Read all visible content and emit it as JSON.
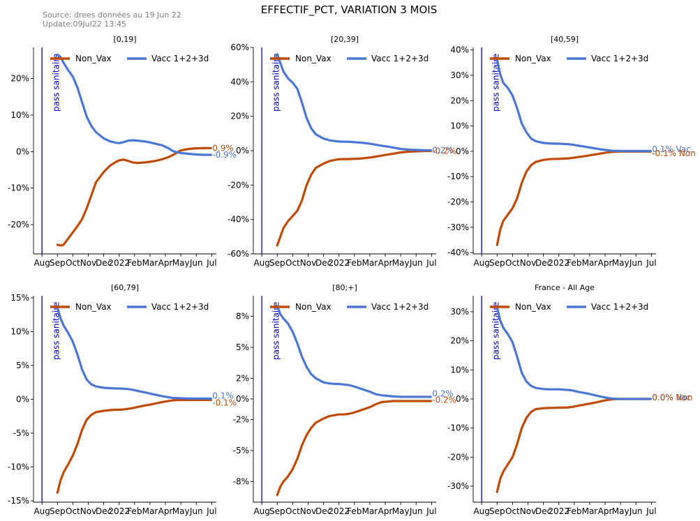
{
  "title": "EFFECTIF_PCT, VARIATION 3 MOIS",
  "source": [
    "Source: drees données au 19 Jun 22",
    "Update:09Jul22 13:45"
  ],
  "colors": {
    "non_vax": "#c04a06",
    "vax": "#4a76d6",
    "pass_line": "#2020c8",
    "pass_text": "#0000cc"
  },
  "x_ticks": [
    "Aug",
    "Sep",
    "Oct",
    "Nov",
    "Dec",
    "2022",
    "Feb",
    "Mar",
    "Apr",
    "May",
    "Jun",
    "Jul"
  ],
  "legend": [
    "Non_Vax",
    "Vacc 1+2+3d"
  ],
  "annotation": "pass sanitaire",
  "chart_data": [
    {
      "type": "line",
      "title": "[0,19]",
      "ylim": [
        -28,
        28.5
      ],
      "yticks": [
        -20,
        -10,
        0,
        10,
        20
      ],
      "ytick_labels": [
        "-20%",
        "-10%",
        "0%",
        "10%",
        "20%"
      ],
      "end_labels": [
        {
          "text": "0.9%",
          "series": "Non_Vax",
          "y": 0.9
        },
        {
          "text": "-0.9%",
          "series": "Vacc 1+2+3d",
          "y": -0.9
        }
      ],
      "x": [
        1,
        1.2,
        1.4,
        1.7,
        2,
        2.3,
        2.6,
        2.9,
        3.2,
        3.5,
        4,
        4.4,
        4.8,
        5,
        5.3,
        5.6,
        5.9,
        6.2,
        6.6,
        7,
        7.4,
        7.8,
        8.2,
        8.5,
        9,
        9.5,
        10,
        10.5,
        10.95
      ],
      "series": [
        {
          "name": "Non_Vax",
          "values": [
            -25.5,
            -25.7,
            -25.5,
            -23.8,
            -22.1,
            -20.4,
            -18.5,
            -15.5,
            -12,
            -8.4,
            -5.6,
            -3.9,
            -2.8,
            -2.4,
            -2.2,
            -2.6,
            -3,
            -3.1,
            -3.0,
            -2.8,
            -2.5,
            -2.1,
            -1.5,
            -0.9,
            0.3,
            0.7,
            0.9,
            0.95,
            0.95
          ]
        },
        {
          "name": "Vacc 1+2+3d",
          "values": [
            26.5,
            25.9,
            24.3,
            22.3,
            20.5,
            17.5,
            13.5,
            9.5,
            7.0,
            5.3,
            3.6,
            2.8,
            2.4,
            2.3,
            2.6,
            3.0,
            3.1,
            3.0,
            2.8,
            2.5,
            2.1,
            1.7,
            0.9,
            0.1,
            -0.4,
            -0.6,
            -0.8,
            -0.9,
            -0.9
          ]
        }
      ]
    },
    {
      "type": "line",
      "title": "[20,39]",
      "ylim": [
        -60,
        60
      ],
      "yticks": [
        -60,
        -40,
        -20,
        0,
        20,
        40,
        60
      ],
      "ytick_labels": [
        "-60%",
        "-40%",
        "-20%",
        "0%",
        "20%",
        "40%",
        "60%"
      ],
      "end_labels": [
        {
          "text": "0.2%",
          "series": "Vacc 1+2+3d",
          "y": 0.2
        },
        {
          "text": "-0.2%",
          "series": "Non_Vax",
          "y": -0.2
        }
      ],
      "x": [
        1,
        1.2,
        1.4,
        1.7,
        2,
        2.3,
        2.6,
        2.9,
        3.2,
        3.5,
        4,
        4.4,
        4.8,
        5,
        5.3,
        5.6,
        5.9,
        6.2,
        6.6,
        7,
        7.4,
        7.8,
        8.2,
        8.5,
        9,
        9.5,
        10,
        10.5,
        10.95
      ],
      "series": [
        {
          "name": "Non_Vax",
          "values": [
            -55,
            -50,
            -45,
            -41,
            -38,
            -35,
            -29,
            -20,
            -14,
            -10,
            -7.5,
            -6,
            -5.3,
            -5,
            -4.9,
            -4.9,
            -4.8,
            -4.7,
            -4.4,
            -4,
            -3.4,
            -2.8,
            -2.2,
            -1.8,
            -1.0,
            -0.6,
            -0.4,
            -0.2,
            -0.2
          ]
        },
        {
          "name": "Vacc 1+2+3d",
          "values": [
            56,
            51,
            46,
            42,
            39.5,
            36,
            28,
            19,
            13,
            9.5,
            7,
            6,
            5.5,
            5.3,
            5.2,
            5.2,
            5.0,
            4.8,
            4.5,
            4.0,
            3.4,
            2.8,
            2.3,
            1.8,
            1.0,
            0.6,
            0.4,
            0.3,
            0.2
          ]
        }
      ]
    },
    {
      "type": "line",
      "title": "[40,59]",
      "ylim": [
        -40.5,
        41
      ],
      "yticks": [
        -40,
        -30,
        -20,
        -10,
        0,
        10,
        20,
        30,
        40
      ],
      "ytick_labels": [
        "-40%",
        "-30%",
        "-20%",
        "-10%",
        "0%",
        "10%",
        "20%",
        "30%",
        "40%"
      ],
      "end_labels": [
        {
          "text": "0.1% Vac",
          "series": "Vacc 1+2+3d",
          "y": 0.8
        },
        {
          "text": "-0.1% Non",
          "series": "Non_Vax",
          "y": -0.8
        }
      ],
      "x": [
        1,
        1.2,
        1.4,
        1.7,
        2,
        2.3,
        2.6,
        2.9,
        3.2,
        3.5,
        4,
        4.4,
        4.8,
        5,
        5.3,
        5.6,
        5.9,
        6.2,
        6.6,
        7,
        7.4,
        7.8,
        8.2,
        8.5,
        9,
        9.5,
        10,
        10.5,
        10.95
      ],
      "series": [
        {
          "name": "Non_Vax",
          "values": [
            -37,
            -31,
            -27.5,
            -25,
            -22.5,
            -18.5,
            -12.5,
            -8,
            -5.5,
            -4.2,
            -3.4,
            -3.1,
            -3.0,
            -3.0,
            -2.9,
            -2.8,
            -2.6,
            -2.3,
            -2.0,
            -1.6,
            -1.2,
            -0.8,
            -0.4,
            -0.2,
            -0.1,
            -0.1,
            -0.1,
            -0.1,
            -0.1
          ]
        },
        {
          "name": "Vacc 1+2+3d",
          "values": [
            36,
            30.5,
            27,
            25,
            22,
            17,
            11,
            7.5,
            5,
            4,
            3.3,
            3.1,
            3.0,
            3.0,
            2.9,
            2.8,
            2.6,
            2.3,
            1.9,
            1.5,
            1.1,
            0.7,
            0.4,
            0.2,
            0.1,
            0.1,
            0.1,
            0.1,
            0.1
          ]
        }
      ]
    },
    {
      "type": "line",
      "title": "[60,79]",
      "ylim": [
        -15.2,
        15.3
      ],
      "yticks": [
        -15,
        -10,
        -5,
        0,
        5,
        10,
        15
      ],
      "ytick_labels": [
        "-15%",
        "-10%",
        "-5%",
        "0%",
        "5%",
        "10%",
        "15%"
      ],
      "end_labels": [
        {
          "text": "0.1%",
          "series": "Vacc 1+2+3d",
          "y": 0.5
        },
        {
          "text": "-0.1%",
          "series": "Non_Vax",
          "y": -0.5
        }
      ],
      "x": [
        1,
        1.2,
        1.4,
        1.7,
        2,
        2.3,
        2.6,
        2.9,
        3.2,
        3.5,
        4,
        4.4,
        4.8,
        5,
        5.3,
        5.6,
        5.9,
        6.2,
        6.6,
        7,
        7.4,
        7.8,
        8.2,
        8.5,
        9,
        9.5,
        10,
        10.5,
        10.95
      ],
      "series": [
        {
          "name": "Non_Vax",
          "values": [
            -13.8,
            -12,
            -10.8,
            -9.6,
            -8.3,
            -6.6,
            -4.5,
            -3,
            -2.3,
            -1.9,
            -1.7,
            -1.6,
            -1.55,
            -1.55,
            -1.5,
            -1.4,
            -1.3,
            -1.15,
            -0.95,
            -0.8,
            -0.6,
            -0.4,
            -0.25,
            -0.15,
            -0.1,
            -0.1,
            -0.1,
            -0.1,
            -0.1
          ]
        },
        {
          "name": "Vacc 1+2+3d",
          "values": [
            13.5,
            12,
            10.9,
            9.8,
            8.5,
            6.6,
            4.4,
            2.9,
            2.2,
            1.9,
            1.7,
            1.65,
            1.6,
            1.6,
            1.55,
            1.5,
            1.4,
            1.25,
            1.05,
            0.85,
            0.65,
            0.45,
            0.3,
            0.2,
            0.15,
            0.12,
            0.1,
            0.1,
            0.1
          ]
        }
      ]
    },
    {
      "type": "line",
      "title": "[80;+]",
      "ylim": [
        -10,
        10
      ],
      "yticks": [
        -8,
        -5,
        -2,
        0,
        2,
        5,
        8
      ],
      "ytick_labels": [
        "-8%",
        "-5%",
        "-2%",
        "0%",
        "2%",
        "5%",
        "8%"
      ],
      "end_labels": [
        {
          "text": "0.2%",
          "series": "Vacc 1+2+3d",
          "y": 0.5
        },
        {
          "text": "-0.2%",
          "series": "Non_Vax",
          "y": -0.1
        }
      ],
      "x": [
        1,
        1.2,
        1.4,
        1.7,
        2,
        2.3,
        2.6,
        2.9,
        3.2,
        3.5,
        4,
        4.4,
        4.8,
        5,
        5.3,
        5.6,
        5.9,
        6.2,
        6.6,
        7,
        7.4,
        7.8,
        8.2,
        8.5,
        9,
        9.5,
        10,
        10.5,
        10.95
      ],
      "series": [
        {
          "name": "Non_Vax",
          "values": [
            -9.3,
            -8.5,
            -8,
            -7.5,
            -6.8,
            -5.8,
            -4.5,
            -3.5,
            -2.8,
            -2.3,
            -1.9,
            -1.65,
            -1.55,
            -1.5,
            -1.5,
            -1.45,
            -1.35,
            -1.2,
            -1.0,
            -0.8,
            -0.5,
            -0.3,
            -0.25,
            -0.2,
            -0.2,
            -0.2,
            -0.2,
            -0.2,
            -0.2
          ]
        },
        {
          "name": "Vacc 1+2+3d",
          "values": [
            9,
            8.2,
            7.8,
            7.3,
            6.5,
            5.4,
            4.1,
            3.1,
            2.4,
            2,
            1.6,
            1.5,
            1.45,
            1.45,
            1.4,
            1.35,
            1.25,
            1.1,
            0.9,
            0.7,
            0.45,
            0.35,
            0.3,
            0.25,
            0.2,
            0.2,
            0.2,
            0.2,
            0.2
          ]
        }
      ]
    },
    {
      "type": "line",
      "title": "France - All Age",
      "ylim": [
        -35.5,
        35.5
      ],
      "yticks": [
        -30,
        -20,
        -10,
        0,
        10,
        20,
        30
      ],
      "ytick_labels": [
        "-30%",
        "-20%",
        "-10%",
        "0%",
        "10%",
        "20%",
        "30%"
      ],
      "end_labels": [
        {
          "text": "0.0% Vac",
          "series": "Vacc 1+2+3d",
          "y": 0.5
        },
        {
          "text": "0.0% Non",
          "series": "Non_Vax",
          "y": 0.5
        }
      ],
      "x": [
        1,
        1.2,
        1.4,
        1.7,
        2,
        2.3,
        2.6,
        2.9,
        3.2,
        3.5,
        4,
        4.4,
        4.8,
        5,
        5.3,
        5.6,
        5.9,
        6.2,
        6.6,
        7,
        7.4,
        7.8,
        8.2,
        8.5,
        9,
        9.5,
        10,
        10.5,
        10.95
      ],
      "series": [
        {
          "name": "Non_Vax",
          "values": [
            -32,
            -27.5,
            -25,
            -22.5,
            -20,
            -15.5,
            -10,
            -6.5,
            -4.5,
            -3.5,
            -3.2,
            -3.1,
            -3.05,
            -3.0,
            -3.0,
            -2.9,
            -2.7,
            -2.4,
            -2.0,
            -1.6,
            -1.2,
            -0.7,
            -0.3,
            -0.1,
            0.0,
            0.0,
            0.0,
            0.0,
            0.0
          ]
        },
        {
          "name": "Vacc 1+2+3d",
          "values": [
            31.5,
            27,
            24.5,
            22.3,
            19.5,
            14.5,
            9,
            6,
            4.5,
            3.8,
            3.4,
            3.3,
            3.3,
            3.3,
            3.2,
            3.1,
            2.9,
            2.5,
            2.1,
            1.7,
            1.2,
            0.7,
            0.3,
            0.1,
            0.0,
            0.0,
            0.0,
            0.0,
            0.0
          ]
        }
      ]
    }
  ]
}
